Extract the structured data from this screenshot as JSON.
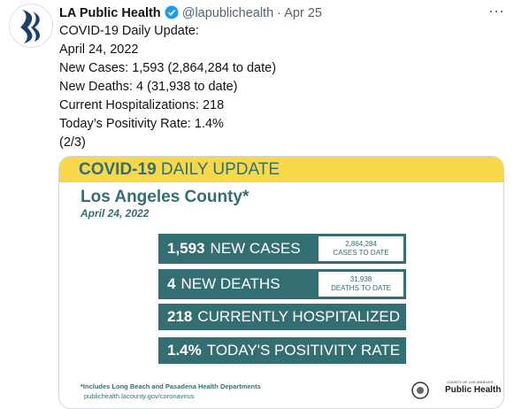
{
  "tweet": {
    "author": {
      "name": "LA Public Health",
      "handle": "@lapublichealth",
      "separator": "·",
      "date": "Apr 25"
    },
    "lines": [
      "COVID-19 Daily Update:",
      "April 24, 2022",
      "New Cases: 1,593 (2,864,284 to date)",
      "New Deaths: 4 (31,938 to date)",
      "Current Hospitalizations: 218",
      "Today’s Positivity Rate: 1.4%",
      "(2/3)"
    ],
    "card": {
      "header": {
        "bold": "COVID-19",
        "rest": "DAILY UPDATE"
      },
      "title": "Los Angeles County*",
      "date": "April 24, 2022",
      "rows": [
        {
          "number": "1,593",
          "label": "NEW CASES",
          "total": "2,864,284",
          "total_label": "CASES TO DATE"
        },
        {
          "number": "4",
          "label": "NEW DEATHS",
          "total": "31,938",
          "total_label": "DEATHS TO DATE"
        },
        {
          "number": "218",
          "label": "CURRENTLY HOSPITALIZED"
        },
        {
          "number": "1.4%",
          "label": "TODAY'S POSITIVITY RATE"
        }
      ],
      "footnote": "*Includes Long Beach and Pasadena Health Departments",
      "url": "publichealth.lacounty.gov/coronavirus",
      "logo": {
        "small": "COUNTY OF LOS ANGELES",
        "big": "Public Health"
      }
    }
  }
}
